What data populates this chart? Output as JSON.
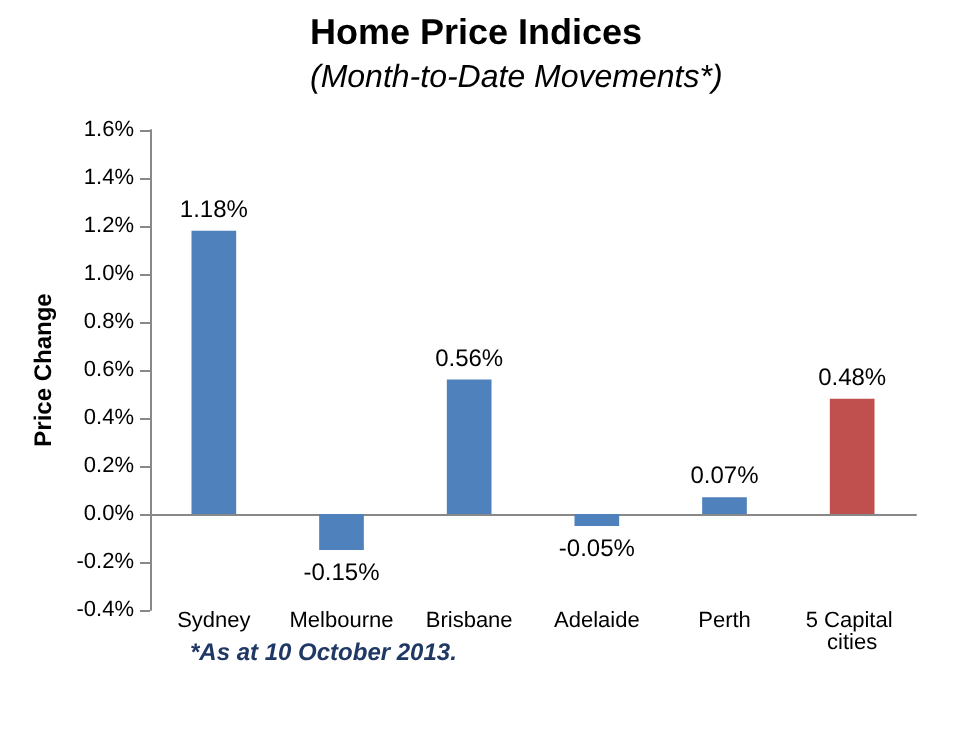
{
  "chart_data": {
    "type": "bar",
    "title": "Home Price Indices",
    "subtitle": "(Month-to-Date Movements*)",
    "ylabel": "Price Change",
    "categories": [
      "Sydney",
      "Melbourne",
      "Brisbane",
      "Adelaide",
      "Perth",
      "5 Capital cities"
    ],
    "values": [
      1.18,
      -0.15,
      0.56,
      -0.05,
      0.07,
      0.48
    ],
    "colors": [
      "#4f81bd",
      "#4f81bd",
      "#4f81bd",
      "#4f81bd",
      "#4f81bd",
      "#c0504d"
    ],
    "value_labels": [
      "1.18%",
      "-0.15%",
      "0.56%",
      "-0.05%",
      "0.07%",
      "0.48%"
    ],
    "ylim": [
      -0.4,
      1.6
    ],
    "yticks": [
      {
        "value": -0.4,
        "label": "-0.4%"
      },
      {
        "value": -0.2,
        "label": "-0.2%"
      },
      {
        "value": 0,
        "label": "0.0%"
      },
      {
        "value": 0.2,
        "label": "0.2%"
      },
      {
        "value": 0.4,
        "label": "0.4%"
      },
      {
        "value": 0.6,
        "label": "0.6%"
      },
      {
        "value": 0.8,
        "label": "0.8%"
      },
      {
        "value": 1.0,
        "label": "1.0%"
      },
      {
        "value": 1.2,
        "label": "1.2%"
      },
      {
        "value": 1.4,
        "label": "1.4%"
      },
      {
        "value": 1.6,
        "label": "1.6%"
      }
    ],
    "annotations": [
      "*As at 10 October 2013."
    ]
  }
}
